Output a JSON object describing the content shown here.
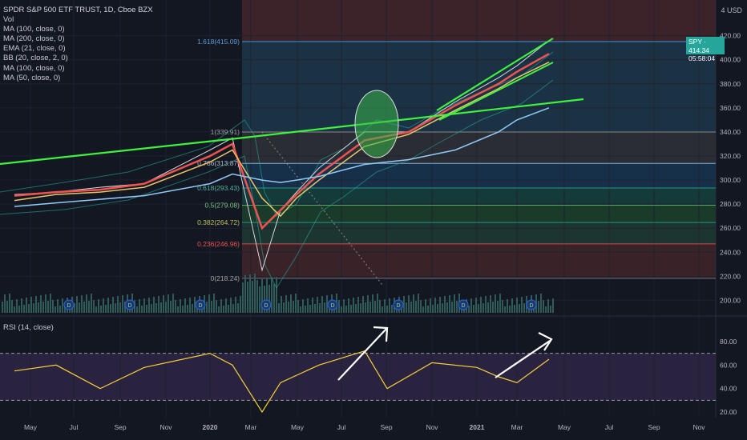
{
  "header": {
    "title": "SPDR S&P 500 ETF TRUST, 1D, Cboe BZX",
    "indicators": [
      "Vol",
      "MA (100, close, 0)",
      "MA (200, close, 0)",
      "EMA (21, close, 0)",
      "BB (20, close, 2, 0)",
      "MA (100, close, 0)",
      "MA (50, close, 0)"
    ],
    "currency": "USD",
    "currency_prefix": "4"
  },
  "price_tag": {
    "symbol": "SPY",
    "price": "414.34",
    "countdown": "05:58:04",
    "color": "#26a69a"
  },
  "rsi_label": "RSI (14, close)",
  "chart_data": [
    {
      "type": "line",
      "title": "SPDR S&P 500 ETF TRUST, 1D, Cboe BZX",
      "y_axis": {
        "ticks": [
          200,
          220,
          240,
          260,
          280,
          300,
          320,
          340,
          360,
          380,
          400,
          420
        ],
        "ylim": [
          192,
          440
        ]
      },
      "x_axis": {
        "ticks": [
          "May",
          "Jul",
          "Sep",
          "Nov",
          "2020",
          "Mar",
          "May",
          "Jul",
          "Sep",
          "Nov",
          "2021",
          "Mar",
          "May",
          "Jul",
          "Sep",
          "Nov"
        ],
        "bold": [
          "2020",
          "2021"
        ]
      },
      "grid": true,
      "series": [
        {
          "name": "price",
          "color": "#d4d6dc",
          "x": [
            "2019-04",
            "2019-06",
            "2019-08",
            "2019-10",
            "2020-01",
            "2020-02",
            "2020-03",
            "2020-04",
            "2020-05",
            "2020-06",
            "2020-08",
            "2020-10",
            "2020-12",
            "2021-02",
            "2021-03",
            "2021-04"
          ],
          "values": [
            288,
            290,
            294,
            297,
            325,
            335,
            225,
            275,
            290,
            310,
            340,
            340,
            365,
            385,
            395,
            416
          ]
        },
        {
          "name": "EMA (21, close, 0)",
          "color": "#ef5350",
          "values": [
            287,
            290,
            292,
            297,
            320,
            330,
            260,
            275,
            288,
            305,
            333,
            340,
            362,
            380,
            390,
            405
          ]
        },
        {
          "name": "MA (50, close, 0)",
          "color": "#e9c46a",
          "values": [
            283,
            288,
            290,
            294,
            315,
            325,
            285,
            270,
            285,
            300,
            328,
            338,
            358,
            376,
            385,
            398
          ]
        },
        {
          "name": "MA (200, close, 0)",
          "color": "#90caf9",
          "values": [
            278,
            281,
            284,
            287,
            297,
            305,
            300,
            298,
            300,
            303,
            313,
            317,
            325,
            340,
            350,
            360
          ]
        }
      ],
      "fibonacci": [
        {
          "label": "1.618(415.09)",
          "value": 415.09,
          "color": "#42a5f5",
          "label_color": "#5b9bd5"
        },
        {
          "label": "1(339.91)",
          "value": 339.91,
          "color": "#9e9e9e",
          "label_color": "#a0a0a0"
        },
        {
          "label": "0.786(313.87)",
          "value": 313.87,
          "color": "#90caf9",
          "label_color": "#b0b8c8"
        },
        {
          "label": "0.618(293.43)",
          "value": 293.43,
          "color": "#26a69a",
          "label_color": "#4fb3a7"
        },
        {
          "label": "0.5(279.08)",
          "value": 279.08,
          "color": "#66bb6a",
          "label_color": "#7cc47f"
        },
        {
          "label": "0.382(264.72)",
          "value": 264.72,
          "color": "#26a69a",
          "label_color": "#b8c15a"
        },
        {
          "label": "0.236(246.96)",
          "value": 246.96,
          "color": "#ef5350",
          "label_color": "#ef5350"
        },
        {
          "label": "0(218.24)",
          "value": 218.24,
          "color": "#787b86",
          "label_color": "#a0a0a0"
        }
      ]
    },
    {
      "type": "line",
      "title": "RSI (14, close)",
      "y_axis": {
        "ticks": [
          20,
          40,
          60,
          80
        ],
        "ylim": [
          14,
          91
        ]
      },
      "bands": [
        30,
        70
      ],
      "band_color": "#7e57c2",
      "series": [
        {
          "name": "RSI",
          "color": "#f7d13a",
          "x": [
            "2019-04",
            "2019-06",
            "2019-08",
            "2019-10",
            "2020-01",
            "2020-02",
            "2020-03",
            "2020-04",
            "2020-06",
            "2020-08",
            "2020-09",
            "2020-11",
            "2021-01",
            "2021-02",
            "2021-03",
            "2021-04"
          ],
          "values": [
            55,
            60,
            40,
            58,
            70,
            60,
            20,
            45,
            60,
            72,
            40,
            62,
            58,
            50,
            45,
            65
          ]
        }
      ]
    }
  ],
  "theme": {
    "background": "#131722",
    "upper_zone": "#3b2329",
    "fib_upper": "#1b3245",
    "green_line": "#3ef23e",
    "rsi_band": "#2a2340"
  }
}
